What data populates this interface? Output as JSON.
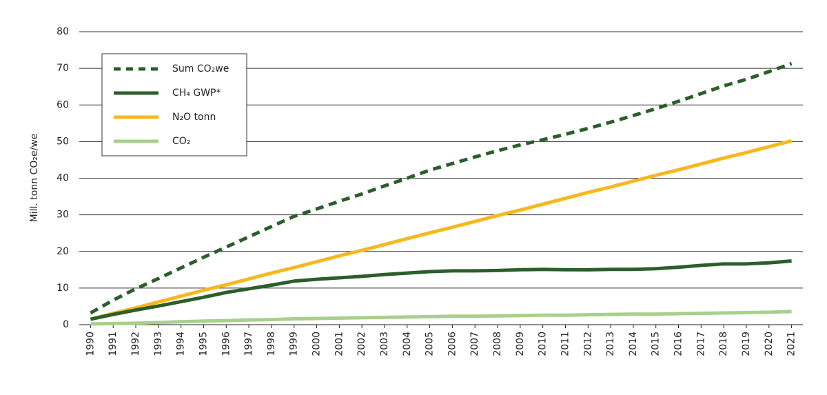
{
  "chart_data": {
    "type": "line",
    "y_label": "Mill. tonn CO₂e/we",
    "categories": [
      "1990",
      "1991",
      "1992",
      "1993",
      "1994",
      "1995",
      "1996",
      "1997",
      "1998",
      "1999",
      "2000",
      "2001",
      "2002",
      "2003",
      "2004",
      "2005",
      "2006",
      "2007",
      "2008",
      "2009",
      "2010",
      "2011",
      "2012",
      "2013",
      "2014",
      "2015",
      "2016",
      "2017",
      "2018",
      "2019",
      "2020",
      "2021"
    ],
    "series": [
      {
        "name": "Sum CO₂we",
        "color": "#2b5e2b",
        "style": "dashed",
        "values": [
          3.2,
          6.7,
          9.8,
          12.6,
          15.5,
          18.4,
          21.2,
          24.0,
          26.8,
          29.6,
          31.6,
          33.7,
          35.7,
          37.9,
          40.0,
          42.2,
          44.0,
          45.8,
          47.5,
          49.1,
          50.5,
          52.0,
          53.6,
          55.3,
          57.1,
          59.0,
          61.0,
          63.1,
          65.2,
          67.0,
          69.1,
          71.3
        ]
      },
      {
        "name": "CH₄ GWP*",
        "color": "#2b5e2b",
        "style": "solid",
        "values": [
          1.5,
          2.8,
          4.0,
          5.1,
          6.3,
          7.5,
          8.8,
          9.8,
          10.8,
          11.9,
          12.4,
          12.8,
          13.2,
          13.7,
          14.1,
          14.5,
          14.7,
          14.7,
          14.8,
          15.0,
          15.1,
          15.0,
          15.0,
          15.1,
          15.1,
          15.3,
          15.7,
          16.2,
          16.6,
          16.6,
          16.9,
          17.4
        ]
      },
      {
        "name": "N₂O tonn",
        "color": "#f7b81e",
        "style": "solid",
        "values": [
          1.5,
          3.1,
          4.6,
          6.2,
          7.8,
          9.4,
          10.9,
          12.5,
          14.1,
          15.6,
          17.2,
          18.8,
          20.3,
          21.9,
          23.5,
          25.1,
          26.6,
          28.2,
          29.8,
          31.3,
          32.9,
          34.5,
          36.1,
          37.6,
          39.2,
          40.8,
          42.3,
          43.9,
          45.5,
          47.0,
          48.6,
          50.2
        ]
      },
      {
        "name": "CO₂",
        "color": "#a7d08c",
        "style": "solid",
        "values": [
          0.2,
          0.3,
          0.4,
          0.6,
          0.8,
          1.0,
          1.1,
          1.3,
          1.4,
          1.6,
          1.7,
          1.8,
          1.9,
          2.0,
          2.1,
          2.2,
          2.3,
          2.3,
          2.4,
          2.5,
          2.6,
          2.6,
          2.7,
          2.8,
          2.9,
          2.9,
          3.0,
          3.1,
          3.2,
          3.3,
          3.4,
          3.6
        ]
      }
    ],
    "ylim": [
      0,
      80
    ],
    "yticks": [
      0,
      10,
      20,
      30,
      40,
      50,
      60,
      70,
      80
    ],
    "grid": true
  }
}
